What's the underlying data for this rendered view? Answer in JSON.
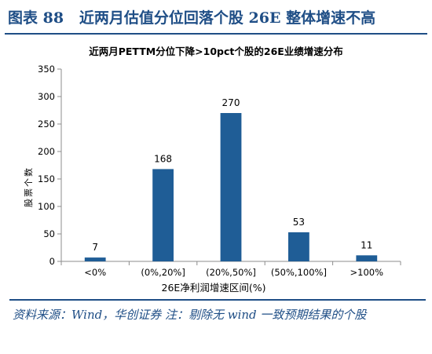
{
  "figure": {
    "label": "图表 88",
    "title": "近两月估值分位回落个股 26E 整体增速不高",
    "source": "资料来源：Wind，华创证券 注：剔除无 wind 一致预期结果的个股"
  },
  "chart_data": {
    "type": "bar",
    "title": "近两月PETTM分位下降>10pct个股的26E业绩增速分布",
    "xlabel": "26E净利润增速区间(%)",
    "ylabel": "股票个数",
    "categories": [
      "<0%",
      "(0%,20%]",
      "(20%,50%]",
      "(50%,100%]",
      ">100%"
    ],
    "values": [
      7,
      168,
      270,
      53,
      11
    ],
    "ylim": [
      0,
      350
    ],
    "yticks": [
      0,
      50,
      100,
      150,
      200,
      250,
      300,
      350
    ],
    "grid": false,
    "legend": "none",
    "bar_color": "#1f5d96",
    "data_labels": true
  }
}
